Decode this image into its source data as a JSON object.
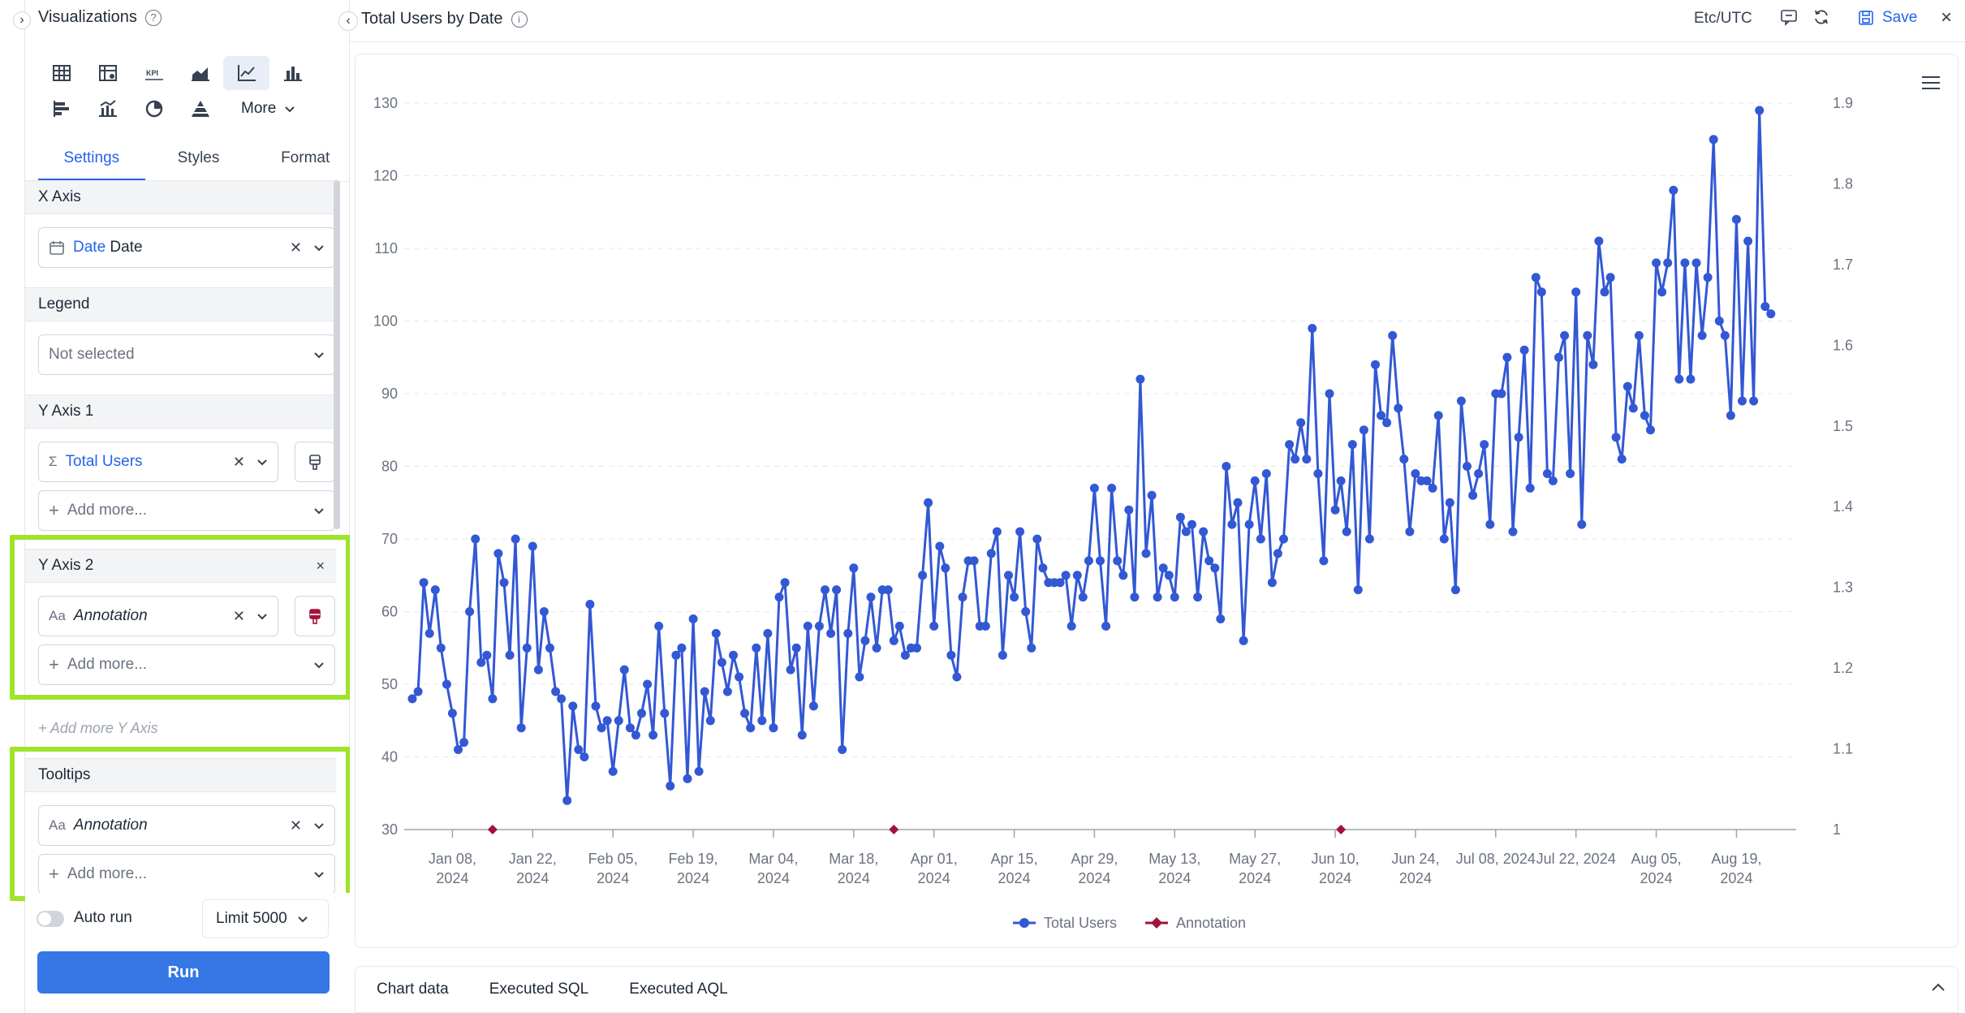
{
  "panel": {
    "title": "Visualizations",
    "more_label": "More",
    "tabs": [
      "Settings",
      "Styles",
      "Format"
    ],
    "x_axis": {
      "header": "X Axis",
      "field_type": "Date",
      "field_name": "Date"
    },
    "legend": {
      "header": "Legend",
      "value": "Not selected"
    },
    "y_axis_1": {
      "header": "Y Axis 1",
      "field": "Total Users",
      "add_more": "Add more..."
    },
    "y_axis_2": {
      "header": "Y Axis 2",
      "field": "Annotation",
      "add_more": "Add more...",
      "type_icon": "Aa"
    },
    "add_more_y": "+ Add more Y Axis",
    "tooltips": {
      "header": "Tooltips",
      "field": "Annotation",
      "add_more": "Add more...",
      "type_icon": "Aa"
    },
    "auto_run_label": "Auto run",
    "limit_label": "Limit 5000",
    "run_label": "Run"
  },
  "main": {
    "title": "Total Users by Date",
    "timezone": "Etc/UTC",
    "save_label": "Save",
    "bottom_tabs": [
      "Chart data",
      "Executed SQL",
      "Executed AQL"
    ]
  },
  "colors": {
    "series_total_users": "#3358d4",
    "series_annotation": "#a3123a",
    "highlight": "#9ee42b",
    "accent": "#2563eb"
  },
  "chart_data": {
    "type": "line",
    "title": "",
    "xlabel": "",
    "ylabel": "",
    "x_ticks": [
      "Jan 08,\n2024",
      "Jan 22,\n2024",
      "Feb 05,\n2024",
      "Feb 19,\n2024",
      "Mar 04,\n2024",
      "Mar 18,\n2024",
      "Apr 01,\n2024",
      "Apr 15,\n2024",
      "Apr 29,\n2024",
      "May 13,\n2024",
      "May 27,\n2024",
      "Jun 10,\n2024",
      "Jun 24,\n2024",
      "Jul 08, 2024",
      "Jul 22, 2024",
      "Aug 05,\n2024",
      "Aug 19,\n2024"
    ],
    "x_tick_dates": [
      "2024-01-08",
      "2024-01-22",
      "2024-02-05",
      "2024-02-19",
      "2024-03-04",
      "2024-03-18",
      "2024-04-01",
      "2024-04-15",
      "2024-04-29",
      "2024-05-13",
      "2024-05-27",
      "2024-06-10",
      "2024-06-24",
      "2024-07-08",
      "2024-07-22",
      "2024-08-05",
      "2024-08-19"
    ],
    "x_range": [
      "2024-01-01",
      "2024-08-28"
    ],
    "ylim_left": [
      30,
      130
    ],
    "yticks_left": [
      30,
      40,
      50,
      60,
      70,
      80,
      90,
      100,
      110,
      120,
      130
    ],
    "ylim_right": [
      1,
      1.9
    ],
    "yticks_right": [
      "1",
      "1.1",
      "1.2",
      "1.3",
      "1.4",
      "1.5",
      "1.6",
      "1.7",
      "1.8",
      "1.9"
    ],
    "grid": true,
    "legend_position": "bottom-center",
    "series": [
      {
        "name": "Total Users",
        "axis": "left",
        "start_date": "2024-01-01",
        "values": [
          48,
          49,
          64,
          57,
          63,
          55,
          50,
          46,
          41,
          42,
          60,
          70,
          53,
          54,
          48,
          68,
          64,
          54,
          70,
          44,
          55,
          69,
          52,
          60,
          55,
          49,
          48,
          34,
          47,
          41,
          40,
          61,
          47,
          44,
          45,
          38,
          45,
          52,
          44,
          43,
          46,
          50,
          43,
          58,
          46,
          36,
          54,
          55,
          37,
          59,
          38,
          49,
          45,
          57,
          53,
          49,
          54,
          51,
          46,
          44,
          55,
          45,
          57,
          44,
          62,
          64,
          52,
          55,
          43,
          58,
          47,
          58,
          63,
          57,
          63,
          41,
          57,
          66,
          51,
          56,
          62,
          55,
          63,
          63,
          56,
          58,
          54,
          55,
          55,
          65,
          75,
          58,
          69,
          66,
          54,
          51,
          62,
          67,
          67,
          58,
          58,
          68,
          71,
          54,
          65,
          62,
          71,
          60,
          55,
          70,
          66,
          64,
          64,
          64,
          65,
          58,
          65,
          62,
          67,
          77,
          67,
          58,
          77,
          67,
          65,
          74,
          62,
          92,
          68,
          76,
          62,
          66,
          65,
          62,
          73,
          71,
          72,
          62,
          71,
          67,
          66,
          59,
          80,
          72,
          75,
          56,
          72,
          78,
          70,
          79,
          64,
          68,
          70,
          83,
          81,
          86,
          81,
          99,
          79,
          67,
          90,
          74,
          78,
          71,
          83,
          63,
          85,
          70,
          94,
          87,
          86,
          98,
          88,
          81,
          71,
          79,
          78,
          78,
          77,
          87,
          70,
          75,
          63,
          89,
          80,
          76,
          79,
          83,
          72,
          90,
          90,
          95,
          71,
          84,
          96,
          77,
          106,
          104,
          79,
          78,
          95,
          98,
          79,
          104,
          72,
          98,
          94,
          111,
          104,
          106,
          84,
          81,
          91,
          88,
          98,
          87,
          85,
          108,
          104,
          108,
          118,
          92,
          108,
          92,
          108,
          98,
          106,
          125,
          100,
          98,
          87,
          114,
          89,
          111,
          89,
          129,
          102,
          101
        ]
      },
      {
        "name": "Annotation",
        "axis": "right",
        "points": [
          {
            "date": "2024-01-15",
            "value": 1
          },
          {
            "date": "2024-03-25",
            "value": 1
          },
          {
            "date": "2024-06-11",
            "value": 1
          }
        ]
      }
    ]
  }
}
